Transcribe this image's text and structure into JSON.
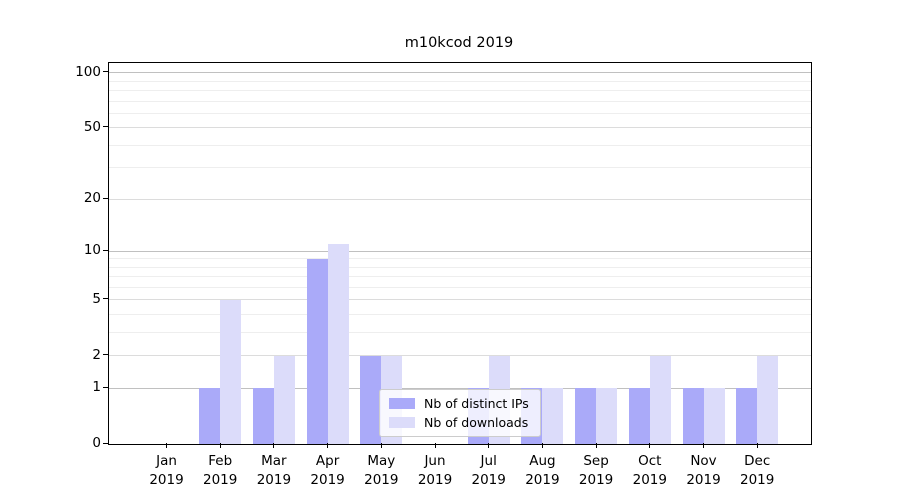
{
  "title": "m10kcod 2019",
  "colors": {
    "distinct_ips": "#aaaaf9",
    "downloads": "#dcdcfa",
    "grid_decade": "#c0c0c0",
    "grid_major": "#dcdcdc",
    "grid_minor": "#eeeeee",
    "axis": "#000000"
  },
  "chart_data": {
    "type": "bar",
    "title": "m10kcod 2019",
    "categories": [
      "Jan 2019",
      "Feb 2019",
      "Mar 2019",
      "Apr 2019",
      "May 2019",
      "Jun 2019",
      "Jul 2019",
      "Aug 2019",
      "Sep 2019",
      "Oct 2019",
      "Nov 2019",
      "Dec 2019"
    ],
    "series": [
      {
        "name": "Nb of distinct IPs",
        "values": [
          0,
          1,
          1,
          9,
          2,
          0,
          1,
          1,
          1,
          1,
          1,
          1
        ],
        "color": "#aaaaf9"
      },
      {
        "name": "Nb of downloads",
        "values": [
          0,
          5,
          2,
          11,
          2,
          0,
          2,
          1,
          1,
          2,
          1,
          2
        ],
        "color": "#dcdcfa"
      }
    ],
    "xlabel": "",
    "ylabel": "",
    "yscale": "log1p",
    "yticks": [
      0,
      1,
      2,
      5,
      10,
      20,
      50,
      100
    ],
    "decade_gridlines": [
      1,
      10,
      100
    ],
    "minor_gridlines": [
      3,
      4,
      6,
      7,
      8,
      9,
      30,
      40,
      60,
      70,
      80,
      90
    ],
    "ylim": [
      0,
      113
    ],
    "grid": true,
    "legend_position": "lower center"
  }
}
